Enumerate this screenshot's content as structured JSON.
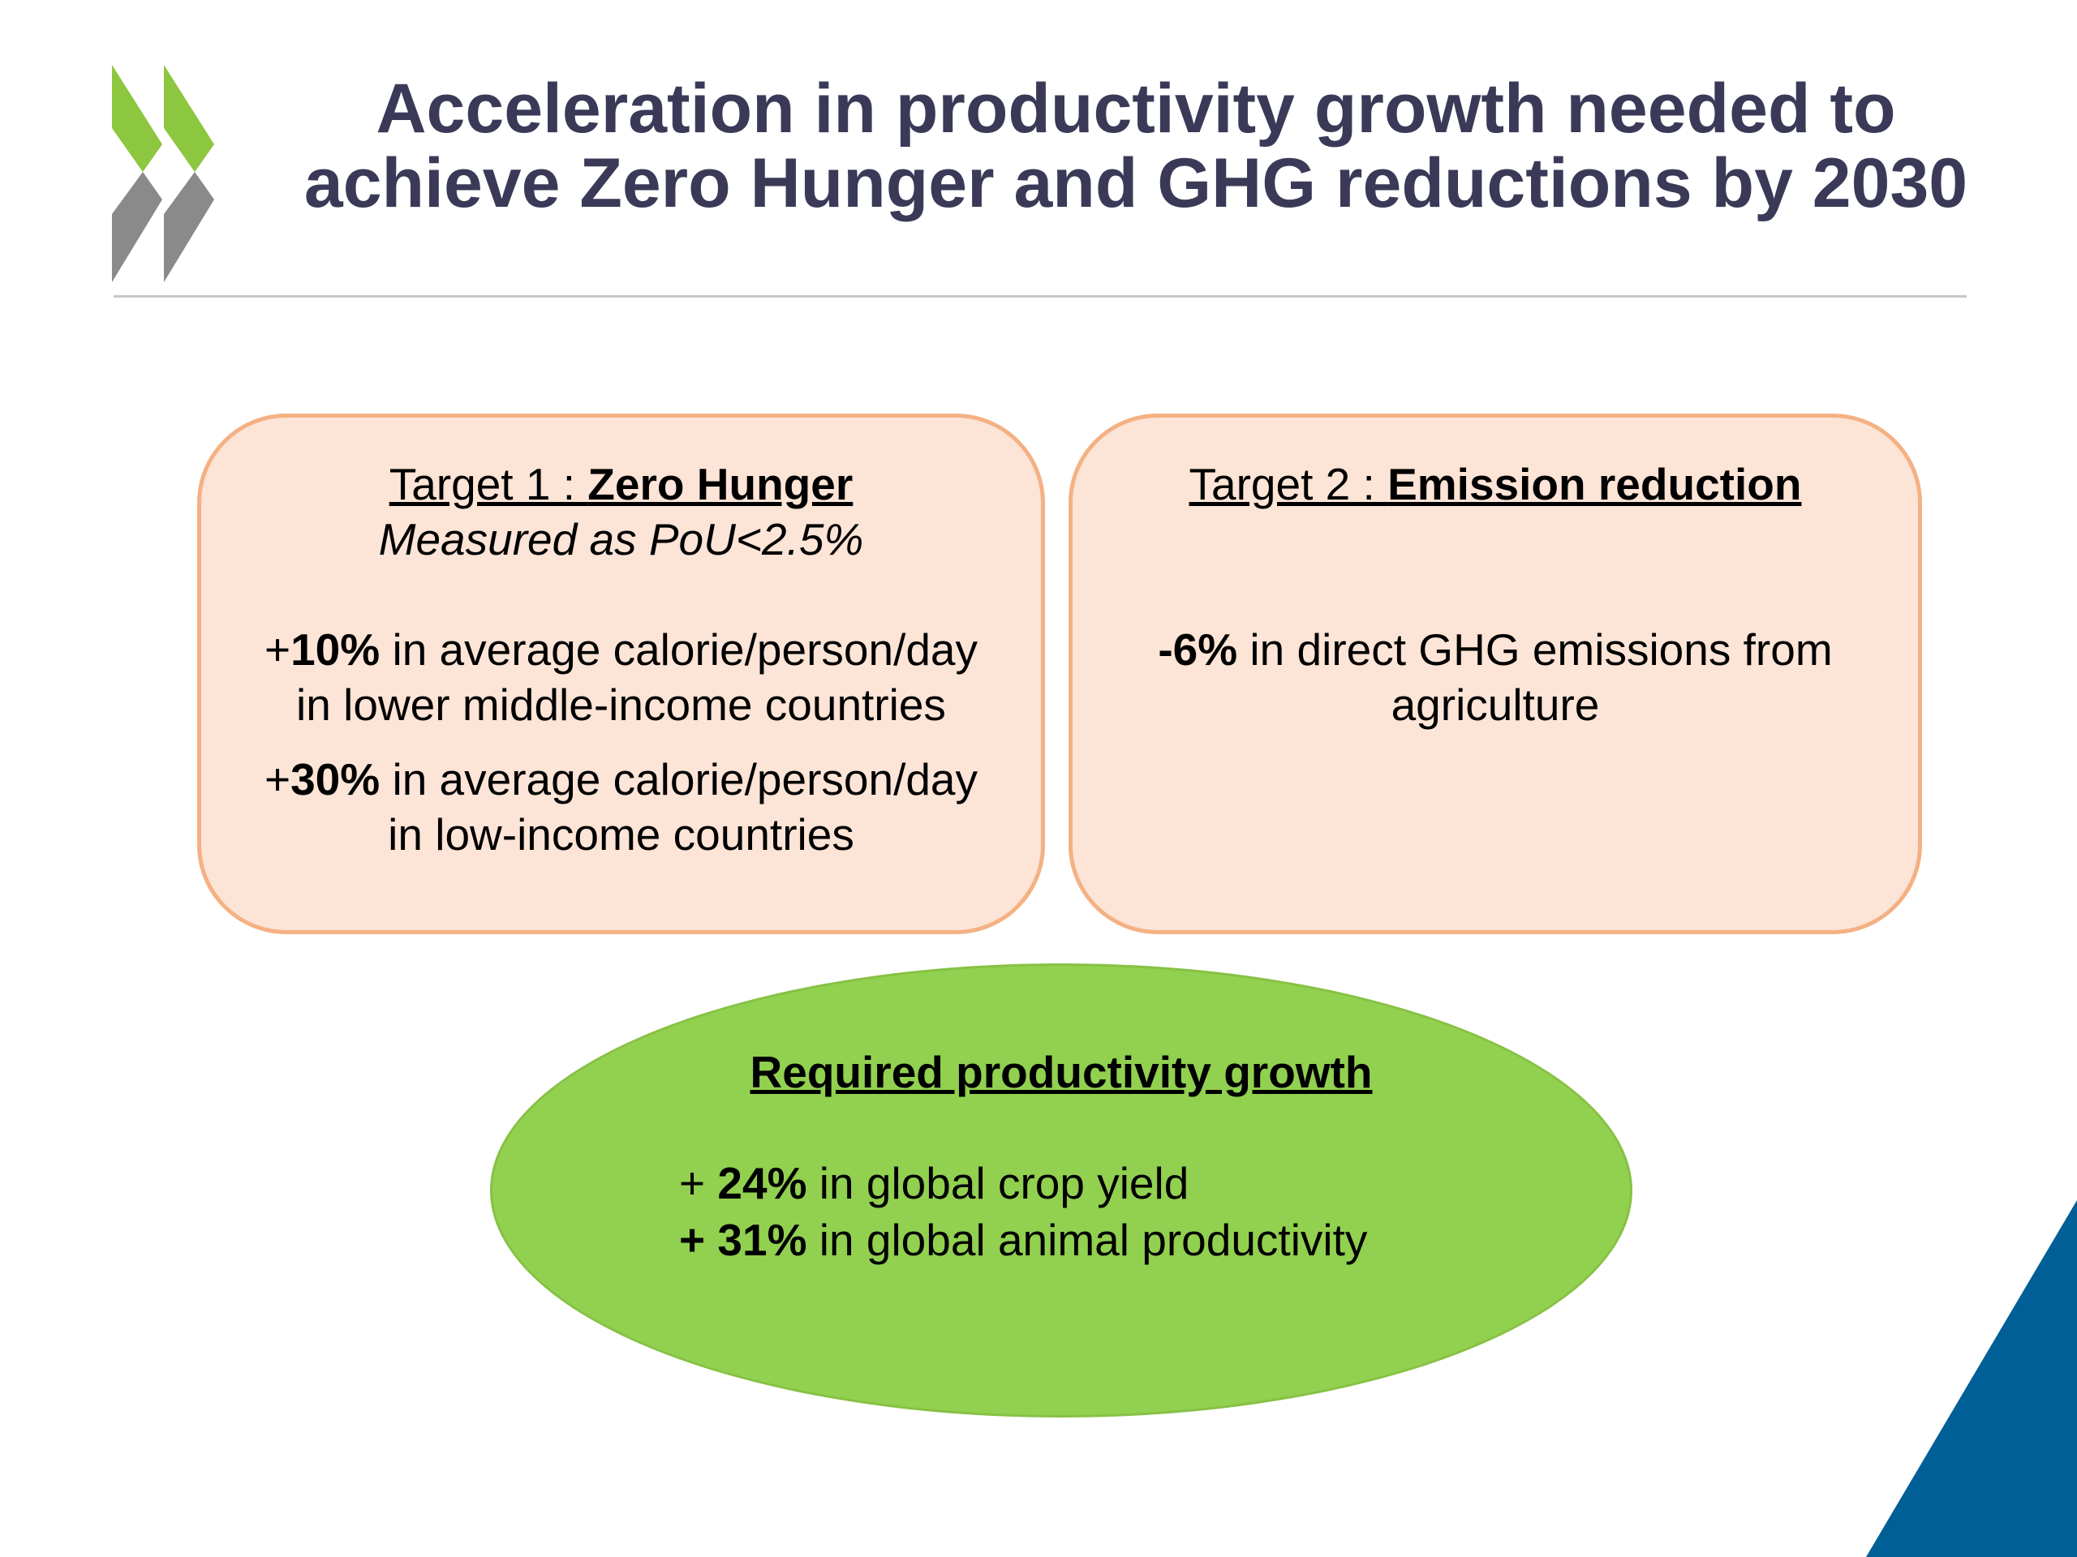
{
  "slide": {
    "title_line1": "Acceleration in productivity growth needed to",
    "title_line2": "achieve Zero Hunger and GHG reductions by 2030"
  },
  "target1": {
    "prefix": "Target 1 : ",
    "name": "Zero Hunger",
    "measure": "Measured as PoU<2.5%",
    "items": [
      {
        "sign": "+",
        "value": "10%",
        "text": " in average calorie/person/day in lower middle-income countries"
      },
      {
        "sign": "+",
        "value": "30%",
        "text": " in average calorie/person/day in low-income countries"
      }
    ]
  },
  "target2": {
    "prefix": "Target 2 : ",
    "name": "Emission reduction",
    "item": {
      "value": "-6%",
      "text": " in direct GHG emissions from agriculture"
    }
  },
  "productivity": {
    "heading": "Required productivity growth",
    "items": [
      {
        "sign": "+ ",
        "value": "24%",
        "text": " in global crop yield"
      },
      {
        "sign": "+ ",
        "value": "31%",
        "text": " in global animal productivity"
      }
    ]
  },
  "colors": {
    "title": "#3a3a58",
    "box_fill": "#fce4d6",
    "box_border": "#f4b183",
    "oval_fill": "#92d050",
    "logo_green": "#8dc63f",
    "logo_gray": "#8a8a8a",
    "corner_blue": "#005f96"
  }
}
